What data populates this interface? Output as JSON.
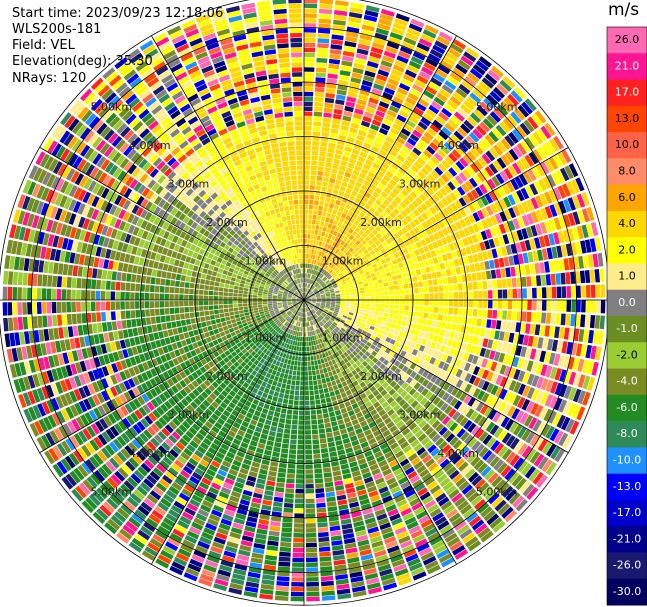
{
  "info": {
    "start_time": "Start time: 2023/09/23 12:18:06",
    "instrument": "WLS200s-181",
    "field": "Field: VEL",
    "elevation": "Elevation(deg): 35.30",
    "nrays": "NRays: 120"
  },
  "chart_data": {
    "type": "heatmap",
    "projection": "polar-ppi",
    "field": "VEL",
    "unit": "m/s",
    "n_rays": 120,
    "elevation_deg": 35.3,
    "range_rings_km": [
      1.0,
      2.0,
      3.0,
      4.0,
      5.0
    ],
    "ring_labels": [
      "1.00km",
      "2.00km",
      "3.00km",
      "4.00km",
      "5.00km"
    ],
    "max_range_km": 5.6,
    "radials_deg": [
      0,
      30,
      60,
      90,
      120,
      150
    ],
    "colorbar": {
      "unit_label": "m/s",
      "levels": [
        26.0,
        21.0,
        17.0,
        13.0,
        10.0,
        8.0,
        6.0,
        4.0,
        2.0,
        1.0,
        0.0,
        -1.0,
        -2.0,
        -4.0,
        -6.0,
        -8.0,
        -10.0,
        -13.0,
        -17.0,
        -21.0,
        -26.0,
        -30.0
      ],
      "labels": [
        "26.0",
        "21.0",
        "17.0",
        "13.0",
        "10.0",
        "8.0",
        "6.0",
        "4.0",
        "2.0",
        "1.0",
        "0.0",
        "-1.0",
        "-2.0",
        "-4.0",
        "-6.0",
        "-8.0",
        "-10.0",
        "-13.0",
        "-17.0",
        "-21.0",
        "-26.0",
        "-30.0"
      ],
      "colors": [
        "#ff69b4",
        "#ff1493",
        "#ff2020",
        "#ff4500",
        "#ff6347",
        "#ff8c69",
        "#ffa500",
        "#ffd700",
        "#ffff00",
        "#ffec8b",
        "#808080",
        "#6b8e23",
        "#9acd32",
        "#7a8b23",
        "#228b22",
        "#2e8b57",
        "#1e90ff",
        "#0000ff",
        "#0000cd",
        "#00008b",
        "#191970",
        "#000060"
      ]
    }
  }
}
